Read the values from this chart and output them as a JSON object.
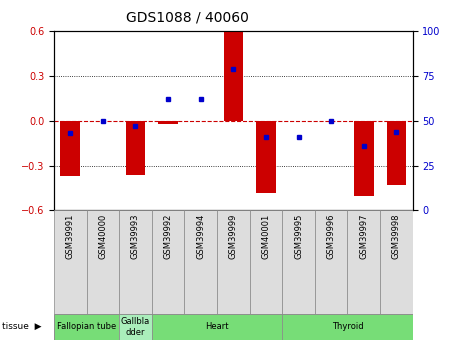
{
  "title": "GDS1088 / 40060",
  "samples": [
    "GSM39991",
    "GSM40000",
    "GSM39993",
    "GSM39992",
    "GSM39994",
    "GSM39999",
    "GSM40001",
    "GSM39995",
    "GSM39996",
    "GSM39997",
    "GSM39998"
  ],
  "log_ratios": [
    -0.37,
    0.0,
    -0.36,
    -0.02,
    0.0,
    0.6,
    -0.48,
    0.0,
    0.0,
    -0.5,
    -0.43
  ],
  "percentile_ranks": [
    43,
    50,
    47,
    62,
    62,
    79,
    41,
    41,
    50,
    36,
    44
  ],
  "tissues": [
    {
      "label": "Fallopian tube",
      "start": 0,
      "end": 2
    },
    {
      "label": "Gallbla\ndder",
      "start": 2,
      "end": 3
    },
    {
      "label": "Heart",
      "start": 3,
      "end": 7
    },
    {
      "label": "Thyroid",
      "start": 7,
      "end": 11
    }
  ],
  "ylim": [
    -0.6,
    0.6
  ],
  "y2lim": [
    0,
    100
  ],
  "yticks": [
    -0.6,
    -0.3,
    0.0,
    0.3,
    0.6
  ],
  "y2ticks": [
    0,
    25,
    50,
    75,
    100
  ],
  "bar_color": "#cc0000",
  "dot_color": "#0000cc",
  "zero_line_color": "#cc0000",
  "tissue_color": "#77dd77",
  "tissue_color_light": "#aaeebb",
  "sample_box_color": "#dddddd",
  "title_fontsize": 10,
  "tick_fontsize": 7,
  "label_fontsize": 6
}
